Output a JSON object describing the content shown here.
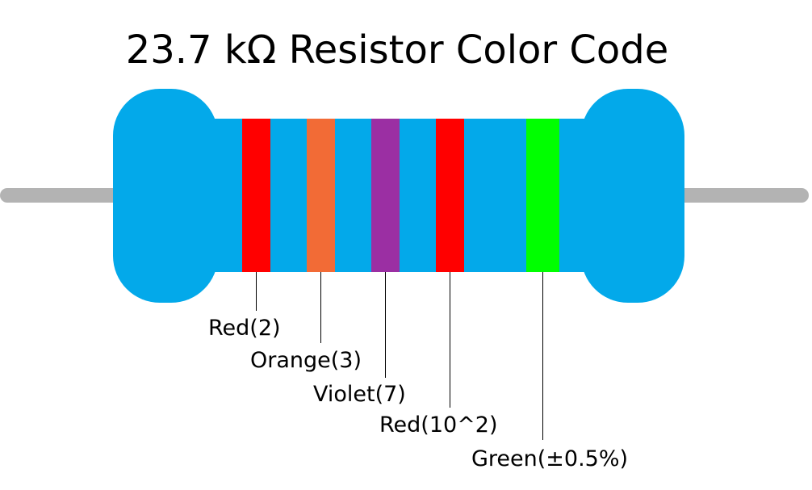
{
  "title": "23.7 kΩ Resistor Color Code",
  "bands": [
    {
      "label": "Red(2)",
      "color": "#ff0000"
    },
    {
      "label": "Orange(3)",
      "color": "#f26b36"
    },
    {
      "label": "Violet(7)",
      "color": "#9b2fa3"
    },
    {
      "label": "Red(10^2)",
      "color": "#ff0000"
    },
    {
      "label": "Green(±0.5%)",
      "color": "#00ff00"
    }
  ]
}
